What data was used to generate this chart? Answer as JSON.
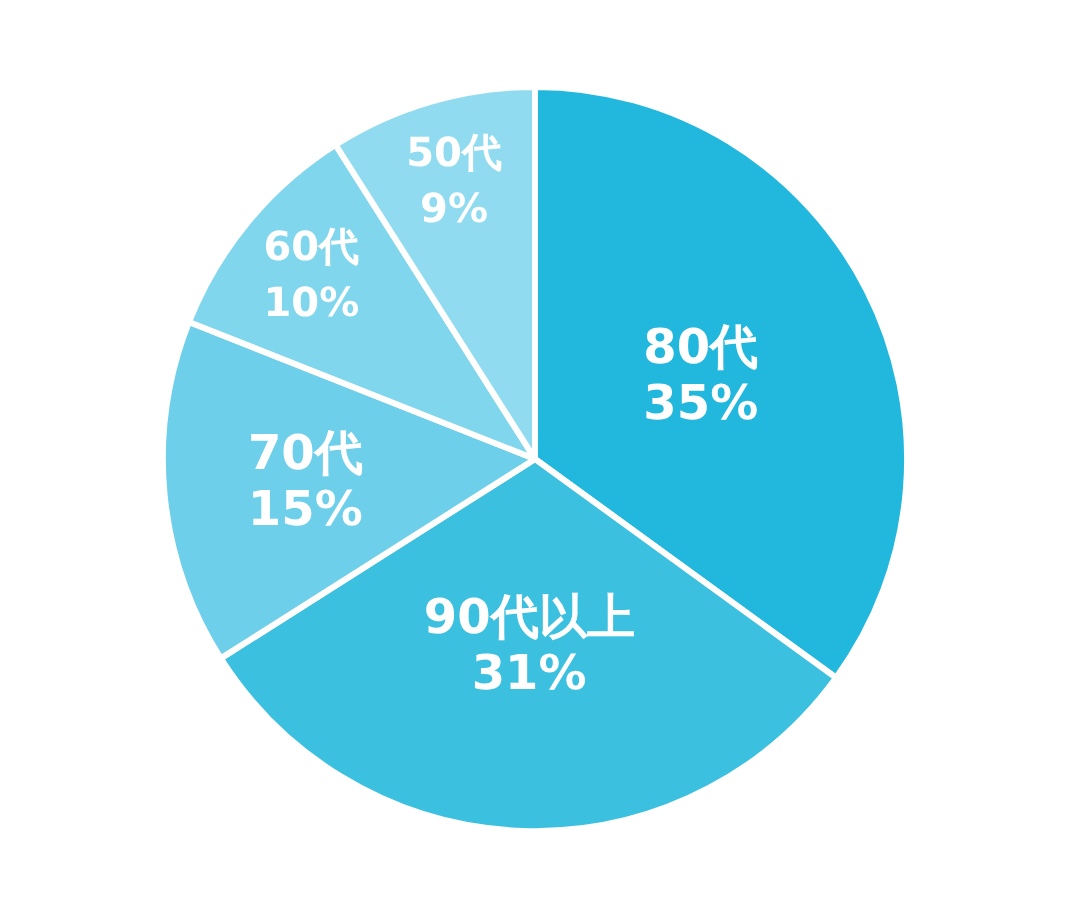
{
  "chart_data": {
    "type": "pie",
    "categories": [
      "80代",
      "90代以上",
      "70代",
      "60代",
      "50代"
    ],
    "values": [
      35,
      31,
      15,
      10,
      9
    ],
    "value_labels": [
      "35%",
      "31%",
      "15%",
      "10%",
      "9%"
    ],
    "colors": [
      "#22b7dd",
      "#3cc0e0",
      "#6dcfe9",
      "#80d6ec",
      "#90dbef"
    ],
    "legend": false
  }
}
